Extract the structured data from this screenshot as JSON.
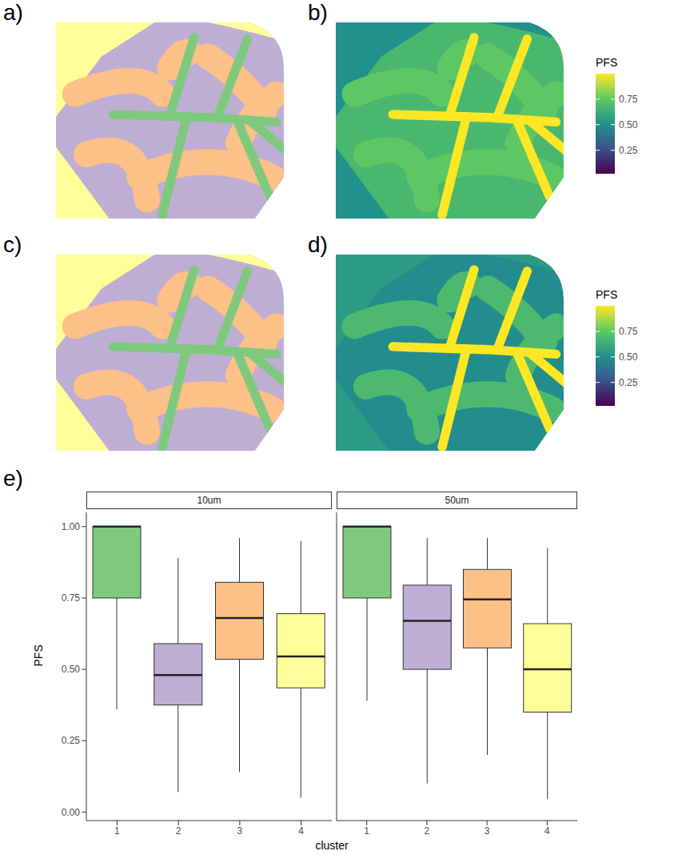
{
  "panel_labels": [
    "a)",
    "b)",
    "c)",
    "d)",
    "e)"
  ],
  "map_panels": [
    {
      "label": "a)",
      "type": "cluster"
    },
    {
      "label": "b)",
      "type": "PFS"
    },
    {
      "label": "c)",
      "type": "cluster"
    },
    {
      "label": "d)",
      "type": "PFS"
    }
  ],
  "colorbar": {
    "title": "PFS",
    "range": [
      0.02,
      1
    ],
    "ticks": [
      0.25,
      {
        "value": 0.5,
        "label": "0.50"
      },
      0.75
    ]
  },
  "chart_data": {
    "type": "boxplot",
    "x_label": "cluster",
    "y_label": "PFS",
    "categories": [
      "1",
      "2",
      "3",
      "4"
    ],
    "colors": [
      "#7fc97f",
      "#beaed4",
      "#fdc086",
      "#ffff99"
    ],
    "ylim": [
      -0.03,
      1.05
    ],
    "yticks": [
      {
        "value": 0,
        "label": "0.00"
      },
      0.25,
      {
        "value": 0.5,
        "label": "0.50"
      },
      0.75,
      {
        "value": 1,
        "label": "1.00"
      }
    ],
    "series": [
      {
        "name": "10um",
        "min": [
          0.36,
          0.07,
          0.14,
          0.05
        ],
        "q1": [
          0.75,
          0.375,
          0.535,
          0.435
        ],
        "median": [
          1.0,
          0.48,
          0.68,
          0.545
        ],
        "q3": [
          1.0,
          0.59,
          0.805,
          0.695
        ],
        "max": [
          1.0,
          0.89,
          0.96,
          0.95
        ]
      },
      {
        "name": "50um",
        "min": [
          0.39,
          0.1,
          0.2,
          0.045
        ],
        "q1": [
          0.75,
          0.5,
          0.575,
          0.35
        ],
        "median": [
          1.0,
          0.67,
          0.745,
          0.5
        ],
        "q3": [
          1.0,
          0.795,
          0.85,
          0.66
        ],
        "max": [
          1.0,
          0.96,
          0.96,
          0.925
        ]
      }
    ]
  }
}
